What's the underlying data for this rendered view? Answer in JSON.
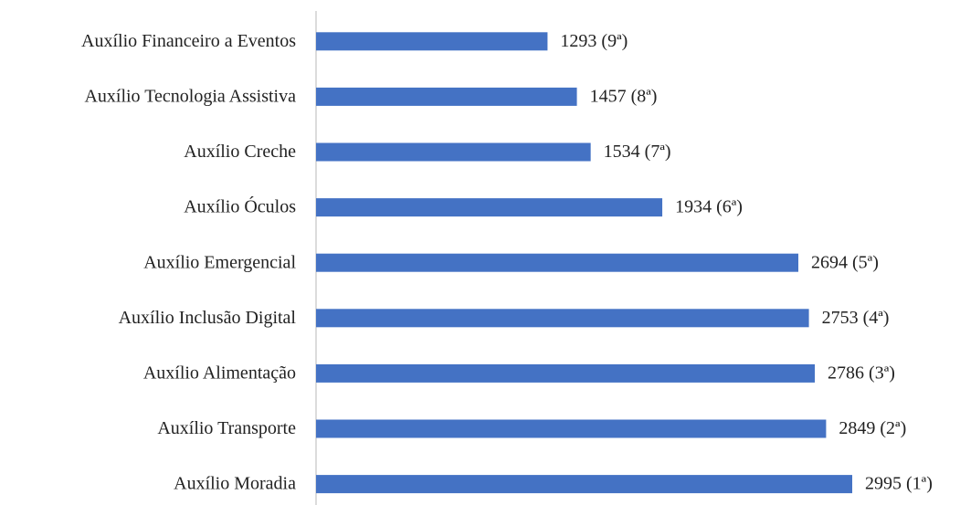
{
  "chart_data": {
    "type": "hbar",
    "categories": [
      "Auxílio Financeiro a Eventos",
      "Auxílio Tecnologia Assistiva",
      "Auxílio Creche",
      "Auxílio Óculos",
      "Auxílio Emergencial",
      "Auxílio Inclusão Digital",
      "Auxílio Alimentação",
      "Auxílio Transporte",
      "Auxílio Moradia"
    ],
    "values": [
      1293,
      1457,
      1534,
      1934,
      2694,
      2753,
      2786,
      2849,
      2995
    ],
    "value_labels": [
      "1293 (9ª)",
      "1457 (8ª)",
      "1534 (7ª)",
      "1934 (6ª)",
      "2694 (5ª)",
      "2753 (4ª)",
      "2786 (3ª)",
      "2849 (2ª)",
      "2995 (1ª)"
    ],
    "color": "#4472c4",
    "xlim": [
      0,
      3000
    ]
  }
}
